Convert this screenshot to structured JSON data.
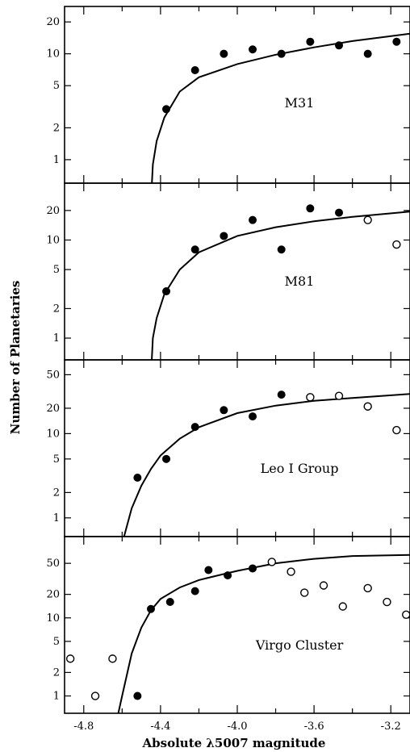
{
  "chart_data": {
    "type": "scatter",
    "ylabel": "Number of Planetaries",
    "xlabel": "Absolute λ5007 magnitude",
    "xlim": [
      -4.9,
      -3.1
    ],
    "xticks": [
      -4.8,
      -4.4,
      -4.0,
      -3.6,
      -3.2
    ],
    "xtick_labels": [
      "-4.8",
      "-4.4",
      "-4.0",
      "-3.6",
      "-3.2"
    ],
    "y_scale": "log",
    "legend": "none",
    "series_styles": {
      "filled": "#000000",
      "open": "#ffffff"
    },
    "panels": [
      {
        "label": "M31",
        "ylim": [
          0.6,
          28
        ],
        "yticks": [
          1,
          2,
          5,
          10,
          20
        ],
        "filled": {
          "x": [
            -4.37,
            -4.22,
            -4.07,
            -3.92,
            -3.77,
            -3.62,
            -3.47,
            -3.32,
            -3.17
          ],
          "y": [
            3.0,
            7.0,
            10.0,
            11.0,
            10.0,
            13.0,
            12.0,
            10.0,
            13.0
          ]
        },
        "open": {
          "x": [],
          "y": []
        },
        "curve": {
          "x": [
            -4.45,
            -4.44,
            -4.42,
            -4.38,
            -4.3,
            -4.2,
            -4.0,
            -3.8,
            -3.6,
            -3.4,
            -3.1
          ],
          "y": [
            0.4,
            0.9,
            1.5,
            2.5,
            4.4,
            6.0,
            8.0,
            9.8,
            11.5,
            13.2,
            15.5
          ]
        }
      },
      {
        "label": "M81",
        "ylim": [
          0.6,
          38
        ],
        "yticks": [
          1,
          2,
          5,
          10,
          20
        ],
        "filled": {
          "x": [
            -4.37,
            -4.22,
            -4.07,
            -3.92,
            -3.77,
            -3.62,
            -3.47
          ],
          "y": [
            3.0,
            8.0,
            11.0,
            16.0,
            8.0,
            21.0,
            19.0
          ]
        },
        "open": {
          "x": [
            -3.32,
            -3.17
          ],
          "y": [
            16.0,
            9.0
          ]
        },
        "curve": {
          "x": [
            -4.45,
            -4.44,
            -4.42,
            -4.38,
            -4.3,
            -4.2,
            -4.0,
            -3.8,
            -3.6,
            -3.4,
            -3.1
          ],
          "y": [
            0.4,
            1.0,
            1.6,
            2.8,
            5.0,
            7.5,
            11.0,
            13.5,
            15.5,
            17.2,
            19.5
          ]
        }
      },
      {
        "label": "Leo I Group",
        "ylim": [
          0.6,
          75
        ],
        "yticks": [
          1,
          2,
          5,
          10,
          20,
          50
        ],
        "filled": {
          "x": [
            -4.52,
            -4.37,
            -4.22,
            -4.07,
            -3.92,
            -3.77
          ],
          "y": [
            3.0,
            5.0,
            12.0,
            19.0,
            16.0,
            29.0
          ]
        },
        "open": {
          "x": [
            -3.62,
            -3.47,
            -3.32,
            -3.17
          ],
          "y": [
            27.0,
            28.0,
            21.0,
            11.0
          ]
        },
        "curve": {
          "x": [
            -4.59,
            -4.55,
            -4.5,
            -4.45,
            -4.4,
            -4.3,
            -4.2,
            -4.0,
            -3.8,
            -3.6,
            -3.4,
            -3.1
          ],
          "y": [
            0.6,
            1.3,
            2.4,
            3.8,
            5.5,
            8.7,
            11.9,
            17.5,
            21.5,
            24.5,
            26.5,
            29.5
          ]
        }
      },
      {
        "label": "Virgo Cluster",
        "ylim": [
          0.6,
          110
        ],
        "yticks": [
          1,
          2,
          5,
          10,
          20,
          50
        ],
        "filled": {
          "x": [
            -4.52,
            -4.45,
            -4.35,
            -4.22,
            -4.15,
            -4.05,
            -3.92
          ],
          "y": [
            1.0,
            13.0,
            16.0,
            22.0,
            41.0,
            35.0,
            43.0
          ]
        },
        "open": {
          "x": [
            -4.87,
            -4.74,
            -4.65,
            -3.82,
            -3.72,
            -3.65,
            -3.55,
            -3.45,
            -3.32,
            -3.22,
            -3.12
          ],
          "y": [
            3.0,
            1.0,
            3.0,
            52.0,
            39.0,
            21.0,
            26.0,
            14.0,
            24.0,
            16.0,
            11.0
          ]
        },
        "curve": {
          "x": [
            -4.62,
            -4.6,
            -4.55,
            -4.5,
            -4.45,
            -4.4,
            -4.3,
            -4.2,
            -4.1,
            -4.0,
            -3.8,
            -3.6,
            -3.4,
            -3.1
          ],
          "y": [
            0.6,
            1.0,
            3.5,
            7.5,
            12.5,
            17.5,
            24.5,
            30.5,
            35.0,
            40.0,
            50.0,
            57.0,
            62.0,
            64.0
          ]
        }
      }
    ]
  }
}
